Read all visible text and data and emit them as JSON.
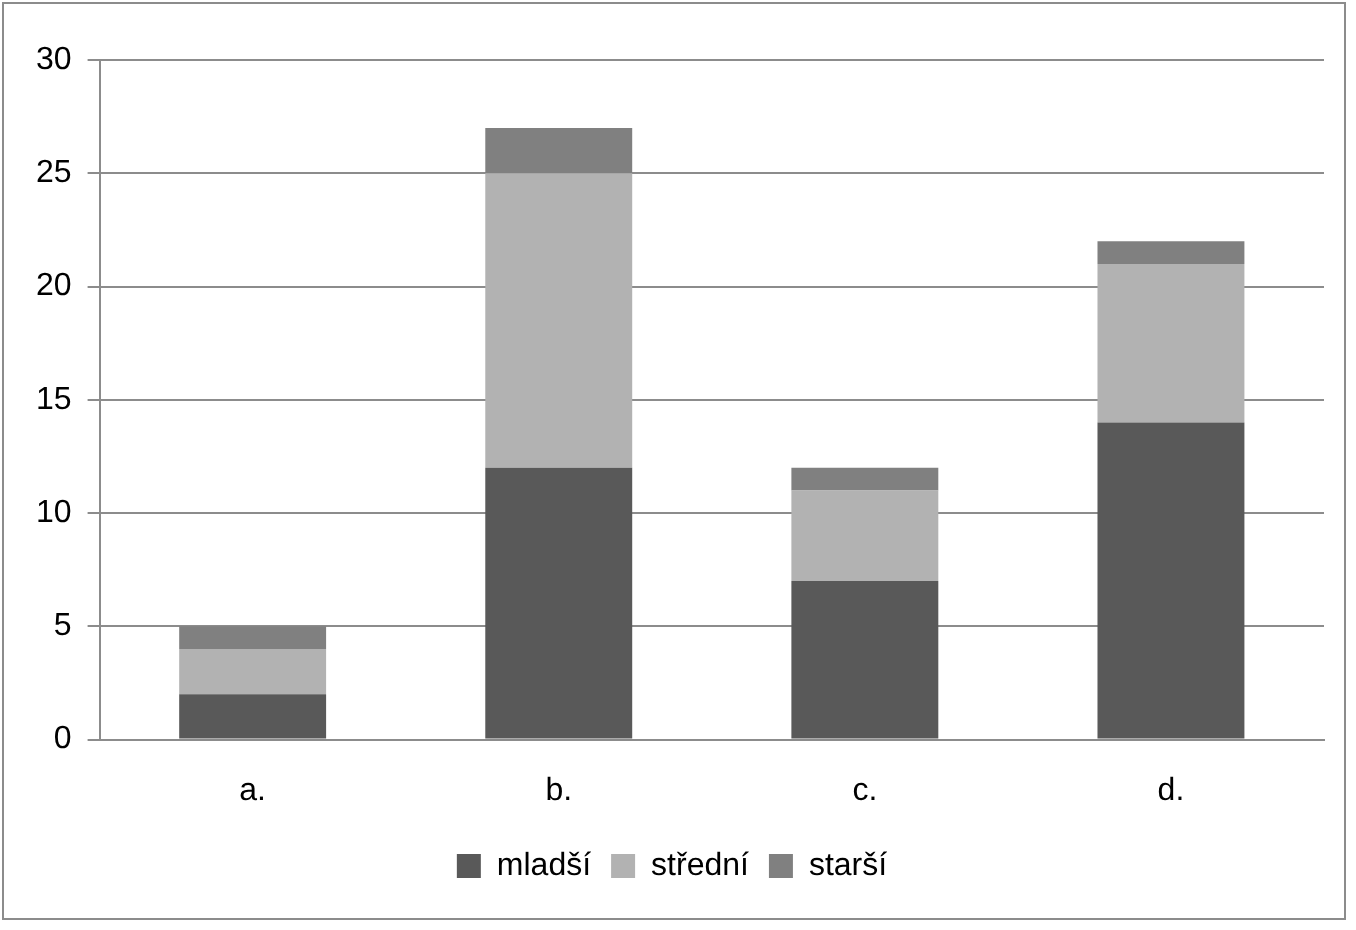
{
  "chart_data": {
    "type": "bar",
    "stacked": true,
    "categories": [
      "a.",
      "b.",
      "c.",
      "d."
    ],
    "series": [
      {
        "name": "mladší",
        "color": "#595959",
        "values": [
          2,
          12,
          7,
          14
        ]
      },
      {
        "name": "střední",
        "color": "#b2b2b2",
        "values": [
          2,
          13,
          4,
          7
        ]
      },
      {
        "name": "starší",
        "color": "#808080",
        "values": [
          1,
          2,
          1,
          1
        ]
      }
    ],
    "ylim": [
      0,
      30
    ],
    "yticks": [
      0,
      5,
      10,
      15,
      20,
      25,
      30
    ],
    "grid": "y",
    "legend": "bottom"
  }
}
